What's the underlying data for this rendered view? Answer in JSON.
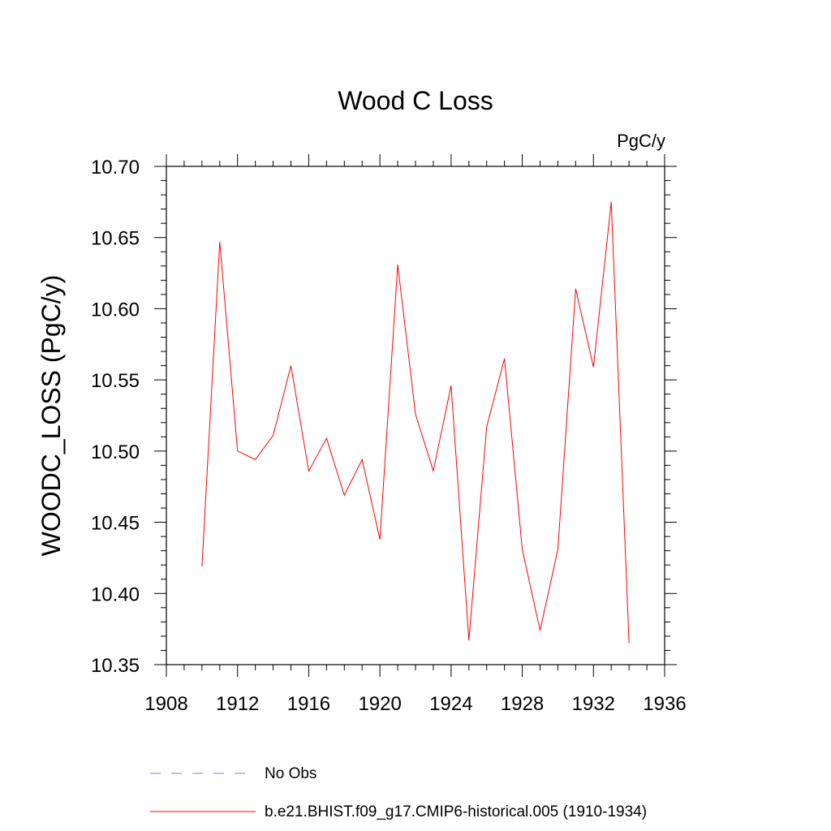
{
  "chart_data": {
    "type": "line",
    "title": "Wood C Loss",
    "units": "PgC/y",
    "xlabel": "",
    "ylabel": "WOODC_LOSS  (PgC/y)",
    "xlim": [
      1908,
      1936
    ],
    "ylim": [
      10.35,
      10.7
    ],
    "xticks": [
      1908,
      1912,
      1916,
      1920,
      1924,
      1928,
      1932,
      1936
    ],
    "xtick_labels": [
      "1908",
      "1912",
      "1916",
      "1920",
      "1924",
      "1928",
      "1932",
      "1936"
    ],
    "yticks": [
      10.35,
      10.4,
      10.45,
      10.5,
      10.55,
      10.6,
      10.65,
      10.7
    ],
    "ytick_labels": [
      "10.35",
      "10.40",
      "10.45",
      "10.50",
      "10.55",
      "10.60",
      "10.65",
      "10.70"
    ],
    "grid": false,
    "legend_position": "bottom",
    "series": [
      {
        "name": "b.e21.BHIST.f09_g17.CMIP6-historical.005 (1910-1934)",
        "color": "#ff0000",
        "style": "solid",
        "x": [
          1910,
          1911,
          1912,
          1913,
          1914,
          1915,
          1916,
          1917,
          1918,
          1919,
          1920,
          1921,
          1922,
          1923,
          1924,
          1925,
          1926,
          1927,
          1928,
          1929,
          1930,
          1931,
          1932,
          1933,
          1934
        ],
        "values": [
          10.419,
          10.647,
          10.5,
          10.494,
          10.511,
          10.56,
          10.486,
          10.509,
          10.469,
          10.494,
          10.438,
          10.631,
          10.526,
          10.486,
          10.546,
          10.367,
          10.517,
          10.565,
          10.431,
          10.374,
          10.431,
          10.614,
          10.559,
          10.675,
          10.365
        ]
      }
    ],
    "legend": [
      {
        "label": "No Obs",
        "color": "#8a7fc9",
        "style": "dashed"
      },
      {
        "label": "b.e21.BHIST.f09_g17.CMIP6-historical.005 (1910-1934)",
        "color": "#ff0000",
        "style": "solid"
      }
    ]
  }
}
